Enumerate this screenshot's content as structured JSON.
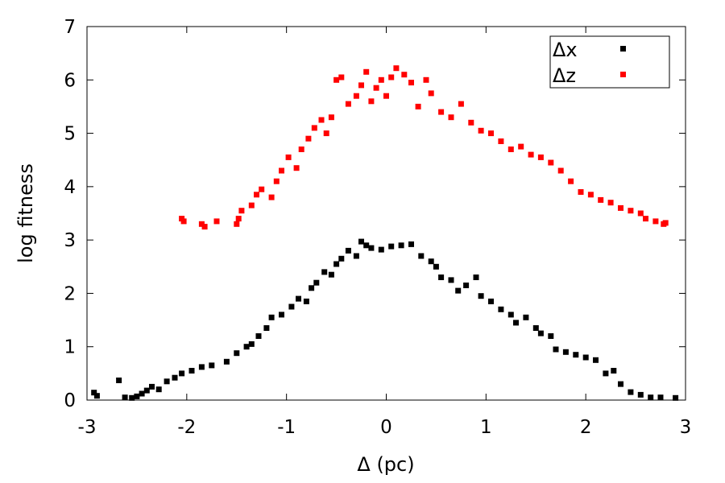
{
  "chart_data": {
    "type": "scatter",
    "title": "",
    "xlabel": "Δ (pc)",
    "ylabel": "log fitness",
    "xlim": [
      -3,
      3
    ],
    "ylim": [
      0,
      7
    ],
    "x_ticks": [
      "-3",
      "-2",
      "-1",
      "0",
      "1",
      "2",
      "3"
    ],
    "y_ticks": [
      "0",
      "1",
      "2",
      "3",
      "4",
      "5",
      "6",
      "7"
    ],
    "grid": false,
    "legend": "top-right",
    "series": [
      {
        "name": "Δx",
        "color": "#000000",
        "points": [
          [
            -2.93,
            0.14
          ],
          [
            -2.9,
            0.08
          ],
          [
            -2.68,
            0.37
          ],
          [
            -2.62,
            0.05
          ],
          [
            -2.55,
            0.04
          ],
          [
            -2.5,
            0.07
          ],
          [
            -2.45,
            0.12
          ],
          [
            -2.4,
            0.18
          ],
          [
            -2.35,
            0.25
          ],
          [
            -2.28,
            0.2
          ],
          [
            -2.2,
            0.35
          ],
          [
            -2.12,
            0.42
          ],
          [
            -2.05,
            0.5
          ],
          [
            -1.95,
            0.55
          ],
          [
            -1.85,
            0.62
          ],
          [
            -1.75,
            0.65
          ],
          [
            -1.6,
            0.72
          ],
          [
            -1.5,
            0.88
          ],
          [
            -1.4,
            1.0
          ],
          [
            -1.35,
            1.05
          ],
          [
            -1.28,
            1.2
          ],
          [
            -1.2,
            1.35
          ],
          [
            -1.15,
            1.55
          ],
          [
            -1.05,
            1.6
          ],
          [
            -0.95,
            1.75
          ],
          [
            -0.88,
            1.9
          ],
          [
            -0.8,
            1.85
          ],
          [
            -0.75,
            2.1
          ],
          [
            -0.7,
            2.2
          ],
          [
            -0.62,
            2.4
          ],
          [
            -0.55,
            2.35
          ],
          [
            -0.5,
            2.55
          ],
          [
            -0.45,
            2.65
          ],
          [
            -0.38,
            2.8
          ],
          [
            -0.3,
            2.7
          ],
          [
            -0.25,
            2.97
          ],
          [
            -0.2,
            2.9
          ],
          [
            -0.15,
            2.85
          ],
          [
            -0.05,
            2.82
          ],
          [
            0.05,
            2.88
          ],
          [
            0.15,
            2.9
          ],
          [
            0.25,
            2.92
          ],
          [
            0.35,
            2.7
          ],
          [
            0.45,
            2.6
          ],
          [
            0.5,
            2.5
          ],
          [
            0.55,
            2.3
          ],
          [
            0.65,
            2.25
          ],
          [
            0.72,
            2.05
          ],
          [
            0.8,
            2.15
          ],
          [
            0.9,
            2.3
          ],
          [
            0.95,
            1.95
          ],
          [
            1.05,
            1.85
          ],
          [
            1.15,
            1.7
          ],
          [
            1.25,
            1.6
          ],
          [
            1.3,
            1.45
          ],
          [
            1.4,
            1.55
          ],
          [
            1.5,
            1.35
          ],
          [
            1.55,
            1.25
          ],
          [
            1.65,
            1.2
          ],
          [
            1.7,
            0.95
          ],
          [
            1.8,
            0.9
          ],
          [
            1.9,
            0.85
          ],
          [
            2.0,
            0.8
          ],
          [
            2.1,
            0.75
          ],
          [
            2.2,
            0.5
          ],
          [
            2.28,
            0.55
          ],
          [
            2.35,
            0.3
          ],
          [
            2.45,
            0.15
          ],
          [
            2.55,
            0.1
          ],
          [
            2.65,
            0.05
          ],
          [
            2.75,
            0.05
          ],
          [
            2.9,
            0.04
          ]
        ]
      },
      {
        "name": "Δz",
        "color": "#ff0000",
        "points": [
          [
            -2.05,
            3.4
          ],
          [
            -2.03,
            3.35
          ],
          [
            -1.85,
            3.3
          ],
          [
            -1.82,
            3.25
          ],
          [
            -1.7,
            3.35
          ],
          [
            -1.5,
            3.3
          ],
          [
            -1.48,
            3.4
          ],
          [
            -1.45,
            3.55
          ],
          [
            -1.35,
            3.65
          ],
          [
            -1.3,
            3.85
          ],
          [
            -1.25,
            3.95
          ],
          [
            -1.15,
            3.8
          ],
          [
            -1.1,
            4.1
          ],
          [
            -1.05,
            4.3
          ],
          [
            -0.98,
            4.55
          ],
          [
            -0.9,
            4.35
          ],
          [
            -0.85,
            4.7
          ],
          [
            -0.78,
            4.9
          ],
          [
            -0.72,
            5.1
          ],
          [
            -0.65,
            5.25
          ],
          [
            -0.6,
            5.0
          ],
          [
            -0.55,
            5.3
          ],
          [
            -0.5,
            6.0
          ],
          [
            -0.45,
            6.05
          ],
          [
            -0.38,
            5.55
          ],
          [
            -0.3,
            5.7
          ],
          [
            -0.25,
            5.9
          ],
          [
            -0.2,
            6.15
          ],
          [
            -0.15,
            5.6
          ],
          [
            -0.1,
            5.85
          ],
          [
            -0.05,
            6.0
          ],
          [
            0.0,
            5.7
          ],
          [
            0.05,
            6.05
          ],
          [
            0.1,
            6.22
          ],
          [
            0.18,
            6.1
          ],
          [
            0.25,
            5.95
          ],
          [
            0.32,
            5.5
          ],
          [
            0.4,
            6.0
          ],
          [
            0.45,
            5.75
          ],
          [
            0.55,
            5.4
          ],
          [
            0.65,
            5.3
          ],
          [
            0.75,
            5.55
          ],
          [
            0.85,
            5.2
          ],
          [
            0.95,
            5.05
          ],
          [
            1.05,
            5.0
          ],
          [
            1.15,
            4.85
          ],
          [
            1.25,
            4.7
          ],
          [
            1.35,
            4.75
          ],
          [
            1.45,
            4.6
          ],
          [
            1.55,
            4.55
          ],
          [
            1.65,
            4.45
          ],
          [
            1.75,
            4.3
          ],
          [
            1.85,
            4.1
          ],
          [
            1.95,
            3.9
          ],
          [
            2.05,
            3.85
          ],
          [
            2.15,
            3.75
          ],
          [
            2.25,
            3.7
          ],
          [
            2.35,
            3.6
          ],
          [
            2.45,
            3.55
          ],
          [
            2.55,
            3.5
          ],
          [
            2.6,
            3.4
          ],
          [
            2.7,
            3.35
          ],
          [
            2.78,
            3.3
          ],
          [
            2.8,
            3.32
          ]
        ]
      }
    ]
  }
}
